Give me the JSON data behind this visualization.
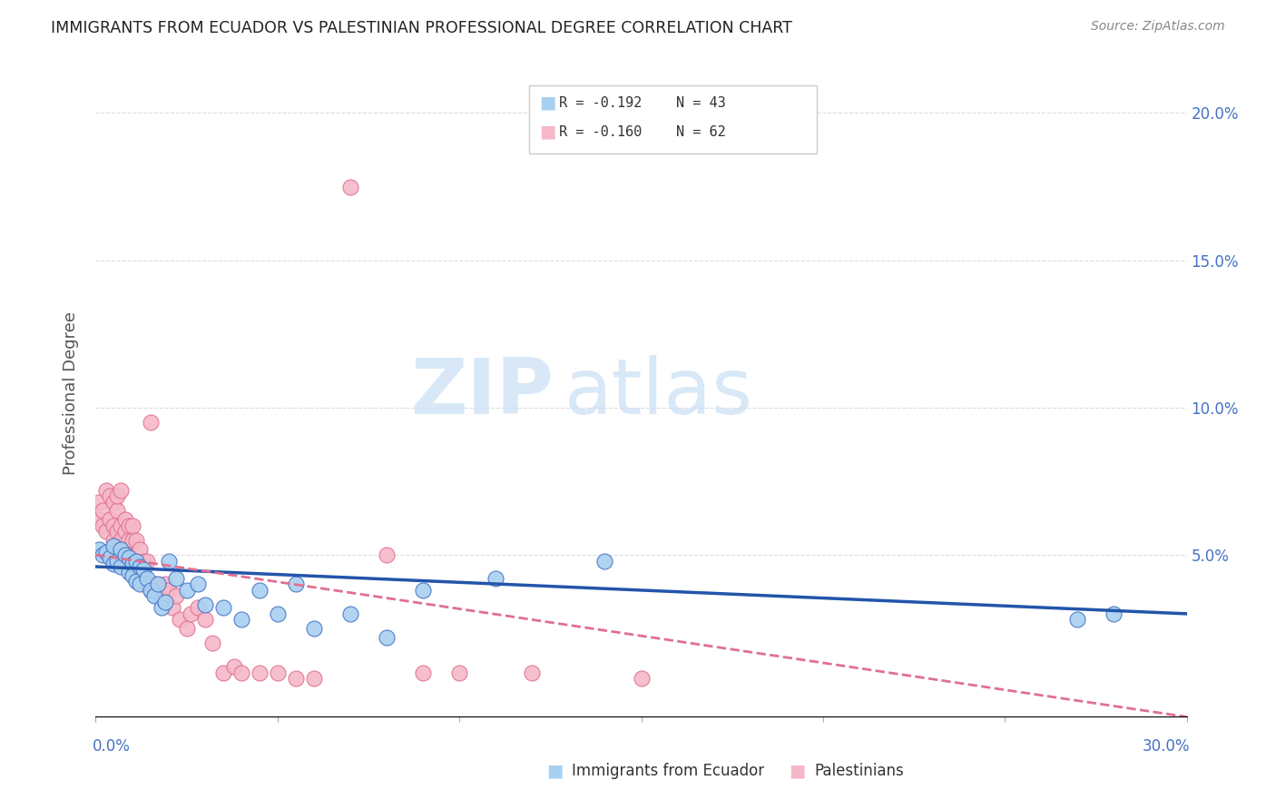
{
  "title": "IMMIGRANTS FROM ECUADOR VS PALESTINIAN PROFESSIONAL DEGREE CORRELATION CHART",
  "source": "Source: ZipAtlas.com",
  "ylabel": "Professional Degree",
  "right_yticks": [
    "20.0%",
    "15.0%",
    "10.0%",
    "5.0%"
  ],
  "right_ytick_vals": [
    0.2,
    0.15,
    0.1,
    0.05
  ],
  "xmin": 0.0,
  "xmax": 0.3,
  "ymin": -0.005,
  "ymax": 0.215,
  "watermark_zip": "ZIP",
  "watermark_atlas": "atlas",
  "legend": {
    "ecuador_R": "R = -0.192",
    "ecuador_N": "N = 43",
    "palestinian_R": "R = -0.160",
    "palestinian_N": "N = 62"
  },
  "ecuador_color": "#A8D0F0",
  "ecuador_edge_color": "#4472C4",
  "ecuador_line_color": "#2255AA",
  "palestinian_color": "#F5B8C8",
  "palestinian_edge_color": "#E07090",
  "palestinian_line_color": "#E07090",
  "background_color": "#FFFFFF",
  "grid_color": "#DDDDDD",
  "right_axis_color": "#4472C4",
  "ecuador_x": [
    0.001,
    0.002,
    0.003,
    0.004,
    0.005,
    0.005,
    0.006,
    0.007,
    0.007,
    0.008,
    0.009,
    0.009,
    0.01,
    0.01,
    0.011,
    0.011,
    0.012,
    0.012,
    0.013,
    0.014,
    0.015,
    0.016,
    0.017,
    0.018,
    0.019,
    0.02,
    0.022,
    0.025,
    0.028,
    0.03,
    0.035,
    0.04,
    0.045,
    0.05,
    0.055,
    0.06,
    0.07,
    0.08,
    0.09,
    0.11,
    0.14,
    0.27,
    0.28
  ],
  "ecuador_y": [
    0.052,
    0.05,
    0.051,
    0.049,
    0.053,
    0.047,
    0.048,
    0.052,
    0.046,
    0.05,
    0.049,
    0.044,
    0.047,
    0.043,
    0.048,
    0.041,
    0.046,
    0.04,
    0.045,
    0.042,
    0.038,
    0.036,
    0.04,
    0.032,
    0.034,
    0.048,
    0.042,
    0.038,
    0.04,
    0.033,
    0.032,
    0.028,
    0.038,
    0.03,
    0.04,
    0.025,
    0.03,
    0.022,
    0.038,
    0.042,
    0.048,
    0.028,
    0.03
  ],
  "palestinian_x": [
    0.001,
    0.001,
    0.002,
    0.002,
    0.003,
    0.003,
    0.004,
    0.004,
    0.005,
    0.005,
    0.005,
    0.006,
    0.006,
    0.006,
    0.007,
    0.007,
    0.007,
    0.008,
    0.008,
    0.008,
    0.009,
    0.009,
    0.009,
    0.01,
    0.01,
    0.01,
    0.011,
    0.011,
    0.012,
    0.012,
    0.013,
    0.013,
    0.014,
    0.014,
    0.015,
    0.015,
    0.016,
    0.017,
    0.018,
    0.019,
    0.02,
    0.021,
    0.022,
    0.023,
    0.025,
    0.026,
    0.028,
    0.03,
    0.032,
    0.035,
    0.038,
    0.04,
    0.045,
    0.05,
    0.055,
    0.06,
    0.07,
    0.08,
    0.09,
    0.1,
    0.12,
    0.15
  ],
  "palestinian_y": [
    0.062,
    0.068,
    0.06,
    0.065,
    0.058,
    0.072,
    0.062,
    0.07,
    0.055,
    0.06,
    0.068,
    0.058,
    0.065,
    0.07,
    0.055,
    0.06,
    0.072,
    0.052,
    0.058,
    0.062,
    0.05,
    0.055,
    0.06,
    0.048,
    0.055,
    0.06,
    0.048,
    0.055,
    0.045,
    0.052,
    0.042,
    0.048,
    0.04,
    0.048,
    0.038,
    0.095,
    0.04,
    0.038,
    0.035,
    0.04,
    0.038,
    0.032,
    0.036,
    0.028,
    0.025,
    0.03,
    0.032,
    0.028,
    0.02,
    0.01,
    0.012,
    0.01,
    0.01,
    0.01,
    0.008,
    0.008,
    0.175,
    0.05,
    0.01,
    0.01,
    0.01,
    0.008
  ],
  "ecu_trend_x0": 0.0,
  "ecu_trend_y0": 0.046,
  "ecu_trend_x1": 0.3,
  "ecu_trend_y1": 0.03,
  "pal_trend_x0": 0.0,
  "pal_trend_y0": 0.05,
  "pal_trend_x1": 0.3,
  "pal_trend_y1": -0.005
}
